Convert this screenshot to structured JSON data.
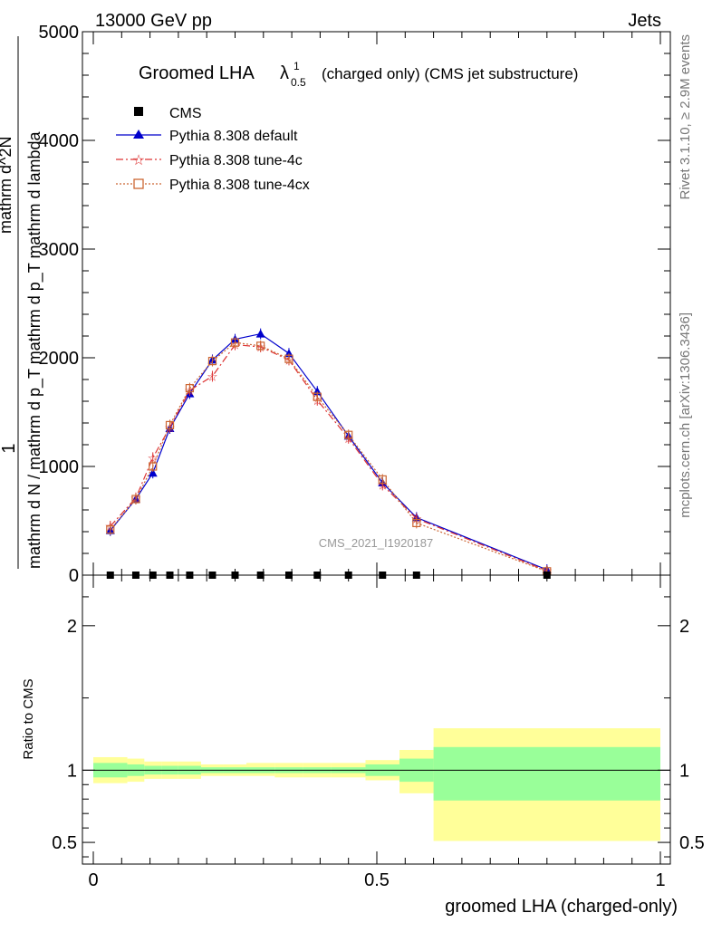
{
  "header": {
    "left": "13000 GeV pp",
    "right": "Jets"
  },
  "side": {
    "top": "Rivet 3.1.10, ≥ 2.9M events",
    "bottom": "mcplots.cern.ch [arXiv:1306.3436]"
  },
  "watermark": "CMS_2021_I1920187",
  "chart_data": {
    "type": "line",
    "title": "Groomed LHA",
    "title_symbol": "λ",
    "title_sup": "1",
    "title_sub": "0.5",
    "title_note": "(charged only) (CMS jet substructure)",
    "xlabel": "groomed LHA (charged-only)",
    "ylabel_top": "1",
    "ylabel_bottom": "mathrm d N / mathrm d p_T mathrm d p_T mathrm d lambda",
    "ylabel_numer": "mathrm d^2N",
    "xlim": [
      0,
      1
    ],
    "ylim": [
      0,
      5000
    ],
    "x_ticks": [
      "0",
      "0.5",
      "1"
    ],
    "y_ticks": [
      "0",
      "1000",
      "2000",
      "3000",
      "4000",
      "5000"
    ],
    "legend": {
      "placement": "top-left",
      "entries": [
        "CMS",
        "Pythia 8.308 default",
        "Pythia 8.308 tune-4c",
        "Pythia 8.308 tune-4cx"
      ]
    },
    "x": [
      0.03,
      0.075,
      0.105,
      0.135,
      0.17,
      0.21,
      0.25,
      0.295,
      0.345,
      0.395,
      0.45,
      0.51,
      0.57,
      0.8
    ],
    "cms": [
      0,
      0,
      0,
      0,
      0,
      0,
      0,
      0,
      0,
      0,
      0,
      0,
      0,
      0
    ],
    "series": [
      {
        "name": "Pythia 8.308 default",
        "color": "#0000cc",
        "marker": "triangle",
        "values": [
          410,
          700,
          940,
          1350,
          1670,
          1980,
          2170,
          2220,
          2040,
          1690,
          1280,
          850,
          530,
          50
        ]
      },
      {
        "name": "Pythia 8.308 tune-4c",
        "color": "#dd3333",
        "marker": "star",
        "values": [
          450,
          710,
          1080,
          1360,
          1700,
          1830,
          2120,
          2100,
          1980,
          1610,
          1260,
          830,
          520,
          40
        ]
      },
      {
        "name": "Pythia 8.308 tune-4cx",
        "color": "#cc6633",
        "marker": "square",
        "values": [
          420,
          700,
          1000,
          1380,
          1720,
          1970,
          2140,
          2110,
          1990,
          1640,
          1290,
          880,
          480,
          35
        ]
      }
    ],
    "ratio": {
      "ylabel": "Ratio to CMS",
      "ylim": [
        0.35,
        2.35
      ],
      "y_ticks": [
        "0.5",
        "1",
        "2"
      ],
      "band_x": [
        0.0,
        0.06,
        0.09,
        0.12,
        0.15,
        0.19,
        0.23,
        0.27,
        0.32,
        0.37,
        0.42,
        0.48,
        0.54,
        0.6,
        1.0
      ],
      "green_lo": [
        0.95,
        0.96,
        0.97,
        0.97,
        0.97,
        0.98,
        0.98,
        0.98,
        0.98,
        0.98,
        0.98,
        0.96,
        0.92,
        0.79
      ],
      "green_hi": [
        1.05,
        1.04,
        1.03,
        1.03,
        1.03,
        1.02,
        1.02,
        1.02,
        1.02,
        1.02,
        1.02,
        1.04,
        1.08,
        1.16
      ],
      "yellow_lo": [
        0.91,
        0.92,
        0.94,
        0.94,
        0.94,
        0.96,
        0.96,
        0.96,
        0.95,
        0.95,
        0.95,
        0.93,
        0.84,
        0.51
      ],
      "yellow_hi": [
        1.09,
        1.08,
        1.06,
        1.06,
        1.06,
        1.04,
        1.04,
        1.05,
        1.05,
        1.05,
        1.05,
        1.07,
        1.14,
        1.29
      ]
    }
  }
}
